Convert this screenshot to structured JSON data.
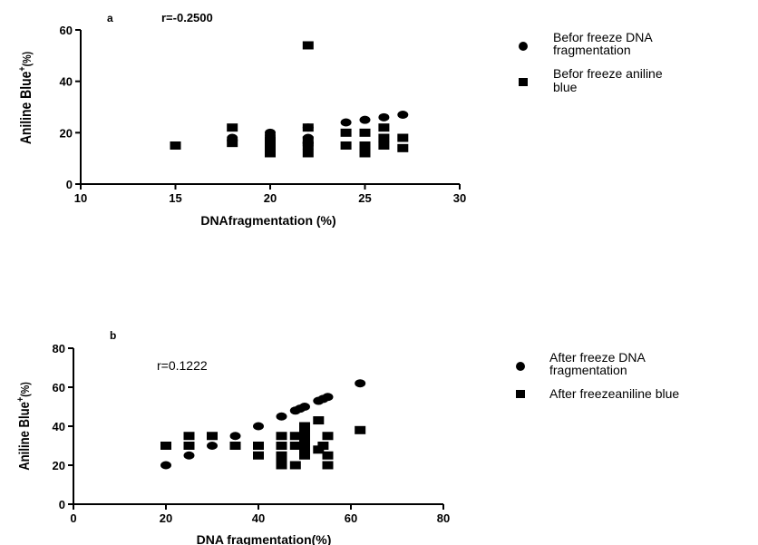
{
  "chart_data": [
    {
      "type": "scatter",
      "panel_label": "a",
      "annotation": "r=-0.2500",
      "xlabel": "DNAfragmentation (%)",
      "ylabel": "Aniline Blue",
      "ylabel_sup": "+",
      "ylabel_unit": "(%)",
      "xlim": [
        10,
        30
      ],
      "ylim": [
        0,
        60
      ],
      "xticks": [
        10,
        15,
        20,
        25,
        30
      ],
      "yticks": [
        0,
        20,
        40,
        60
      ],
      "legend_position": "right",
      "series": [
        {
          "name": "Befor freeze DNA fragmentation",
          "marker": "circle",
          "points": [
            [
              18,
              18
            ],
            [
              18,
              17
            ],
            [
              20,
              20
            ],
            [
              20,
              19
            ],
            [
              20,
              18
            ],
            [
              20,
              16
            ],
            [
              20,
              15
            ],
            [
              22,
              22
            ],
            [
              22,
              18
            ],
            [
              22,
              16
            ],
            [
              22,
              15
            ],
            [
              24,
              24
            ],
            [
              25,
              25
            ],
            [
              26,
              26
            ],
            [
              27,
              27
            ]
          ]
        },
        {
          "name": "Befor freeze aniline blue",
          "marker": "square",
          "points": [
            [
              15,
              15
            ],
            [
              18,
              22
            ],
            [
              18,
              16
            ],
            [
              20,
              17
            ],
            [
              20,
              15
            ],
            [
              20,
              12
            ],
            [
              22,
              54
            ],
            [
              22,
              22
            ],
            [
              22,
              17
            ],
            [
              22,
              15
            ],
            [
              22,
              12
            ],
            [
              24,
              20
            ],
            [
              24,
              15
            ],
            [
              25,
              20
            ],
            [
              25,
              15
            ],
            [
              25,
              13
            ],
            [
              25,
              12
            ],
            [
              26,
              22
            ],
            [
              26,
              18
            ],
            [
              26,
              15
            ],
            [
              27,
              18
            ],
            [
              27,
              14
            ]
          ]
        }
      ]
    },
    {
      "type": "scatter",
      "panel_label": "b",
      "annotation": "r=0.1222",
      "xlabel": "DNA fragmentation(%)",
      "ylabel": "Aniline Blue",
      "ylabel_sup": "+",
      "ylabel_unit": "(%)",
      "xlim": [
        0,
        80
      ],
      "ylim": [
        0,
        80
      ],
      "xticks": [
        0,
        20,
        40,
        60,
        80
      ],
      "yticks": [
        0,
        20,
        40,
        60,
        80
      ],
      "legend_position": "right",
      "series": [
        {
          "name": "After freeze DNA fragmentation",
          "marker": "circle",
          "points": [
            [
              20,
              20
            ],
            [
              25,
              25
            ],
            [
              30,
              30
            ],
            [
              35,
              35
            ],
            [
              40,
              40
            ],
            [
              45,
              45
            ],
            [
              48,
              48
            ],
            [
              49,
              49
            ],
            [
              50,
              50
            ],
            [
              53,
              53
            ],
            [
              54,
              54
            ],
            [
              55,
              55
            ],
            [
              62,
              62
            ]
          ]
        },
        {
          "name": "After freezeaniline blue",
          "marker": "square",
          "points": [
            [
              20,
              30
            ],
            [
              25,
              35
            ],
            [
              25,
              30
            ],
            [
              30,
              35
            ],
            [
              35,
              30
            ],
            [
              40,
              30
            ],
            [
              40,
              25
            ],
            [
              45,
              35
            ],
            [
              45,
              30
            ],
            [
              45,
              25
            ],
            [
              45,
              22
            ],
            [
              45,
              20
            ],
            [
              48,
              35
            ],
            [
              48,
              30
            ],
            [
              48,
              20
            ],
            [
              50,
              40
            ],
            [
              50,
              38
            ],
            [
              50,
              35
            ],
            [
              50,
              32
            ],
            [
              50,
              30
            ],
            [
              50,
              28
            ],
            [
              50,
              25
            ],
            [
              53,
              43
            ],
            [
              53,
              28
            ],
            [
              54,
              30
            ],
            [
              55,
              35
            ],
            [
              55,
              25
            ],
            [
              55,
              20
            ],
            [
              62,
              38
            ]
          ]
        }
      ]
    }
  ]
}
